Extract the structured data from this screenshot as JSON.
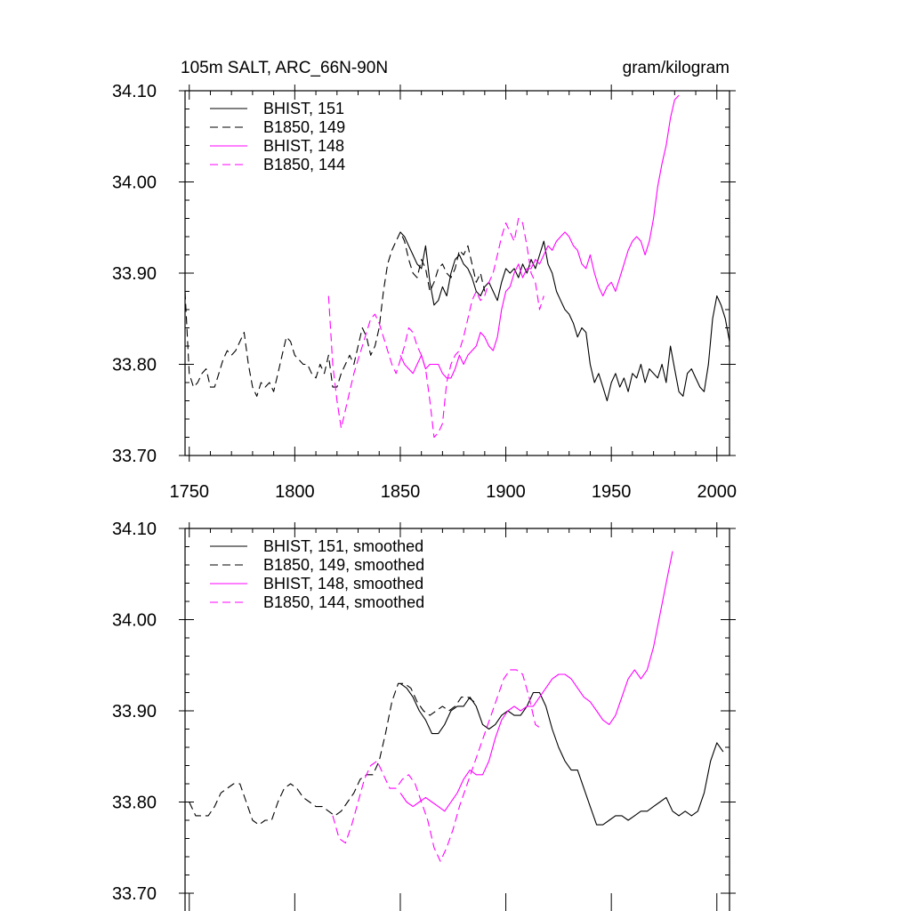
{
  "figure": {
    "title_left": "105m SALT, ARC_66N-90N",
    "title_right": "gram/kilogram"
  },
  "colors": {
    "black": "#000000",
    "magenta": "#ff00ff"
  },
  "chart_data": [
    {
      "type": "line",
      "title": "105m SALT, ARC_66N-90N",
      "units": "gram/kilogram",
      "xlim": [
        1748,
        2006
      ],
      "ylim": [
        33.7,
        34.1
      ],
      "xticks": [
        1750,
        1800,
        1850,
        1900,
        1950,
        2000
      ],
      "yticks": [
        33.7,
        33.8,
        33.9,
        34.0,
        34.1
      ],
      "ytick_labels": [
        "33.70",
        "33.80",
        "33.90",
        "34.00",
        "34.10"
      ],
      "grid": false,
      "legend": "top-left",
      "series": [
        {
          "name": "BHIST, 151",
          "color": "#000000",
          "dash": "solid",
          "x": [
            1850,
            1852,
            1854,
            1856,
            1858,
            1860,
            1862,
            1864,
            1866,
            1868,
            1870,
            1872,
            1874,
            1876,
            1878,
            1880,
            1882,
            1884,
            1886,
            1888,
            1890,
            1892,
            1894,
            1896,
            1898,
            1900,
            1902,
            1904,
            1906,
            1908,
            1910,
            1912,
            1914,
            1916,
            1918,
            1920,
            1922,
            1924,
            1926,
            1928,
            1930,
            1932,
            1934,
            1936,
            1938,
            1940,
            1942,
            1944,
            1946,
            1948,
            1950,
            1952,
            1954,
            1956,
            1958,
            1960,
            1962,
            1964,
            1966,
            1968,
            1970,
            1972,
            1974,
            1976,
            1978,
            1980,
            1982,
            1984,
            1986,
            1988,
            1990,
            1992,
            1994,
            1996,
            1998,
            2000,
            2002,
            2004,
            2006
          ],
          "y": [
            33.945,
            33.94,
            33.93,
            33.92,
            33.91,
            33.905,
            33.93,
            33.89,
            33.865,
            33.87,
            33.885,
            33.875,
            33.9,
            33.915,
            33.92,
            33.91,
            33.905,
            33.895,
            33.88,
            33.875,
            33.885,
            33.89,
            33.88,
            33.87,
            33.89,
            33.905,
            33.9,
            33.905,
            33.895,
            33.91,
            33.9,
            33.915,
            33.905,
            33.92,
            33.935,
            33.91,
            33.9,
            33.88,
            33.87,
            33.86,
            33.855,
            33.845,
            33.83,
            33.84,
            33.835,
            33.8,
            33.78,
            33.79,
            33.775,
            33.76,
            33.78,
            33.79,
            33.775,
            33.785,
            33.77,
            33.79,
            33.785,
            33.8,
            33.78,
            33.795,
            33.79,
            33.785,
            33.8,
            33.78,
            33.82,
            33.795,
            33.77,
            33.765,
            33.79,
            33.795,
            33.785,
            33.775,
            33.77,
            33.8,
            33.85,
            33.875,
            33.865,
            33.85,
            33.825
          ]
        },
        {
          "name": "B1850, 149",
          "color": "#000000",
          "dash": "dashed",
          "x": [
            1748,
            1750,
            1752,
            1754,
            1756,
            1758,
            1760,
            1762,
            1764,
            1766,
            1768,
            1770,
            1772,
            1774,
            1776,
            1778,
            1780,
            1782,
            1784,
            1786,
            1788,
            1790,
            1792,
            1794,
            1796,
            1798,
            1800,
            1802,
            1804,
            1806,
            1808,
            1810,
            1812,
            1814,
            1816,
            1818,
            1820,
            1822,
            1824,
            1826,
            1828,
            1830,
            1832,
            1834,
            1836,
            1838,
            1840,
            1842,
            1844,
            1846,
            1848,
            1850,
            1852,
            1854,
            1856,
            1858,
            1860,
            1862,
            1864,
            1866,
            1868,
            1870,
            1872,
            1874,
            1876,
            1878,
            1880,
            1882,
            1884,
            1886,
            1888,
            1890
          ],
          "y": [
            33.88,
            33.79,
            33.775,
            33.78,
            33.79,
            33.795,
            33.775,
            33.775,
            33.79,
            33.805,
            33.815,
            33.81,
            33.815,
            33.825,
            33.835,
            33.8,
            33.775,
            33.765,
            33.78,
            33.775,
            33.78,
            33.77,
            33.79,
            33.81,
            33.83,
            33.825,
            33.81,
            33.805,
            33.8,
            33.8,
            33.79,
            33.785,
            33.8,
            33.79,
            33.81,
            33.775,
            33.775,
            33.79,
            33.8,
            33.81,
            33.8,
            33.82,
            33.84,
            33.83,
            33.81,
            33.82,
            33.84,
            33.88,
            33.91,
            33.925,
            33.935,
            33.945,
            33.935,
            33.915,
            33.9,
            33.895,
            33.915,
            33.905,
            33.88,
            33.89,
            33.905,
            33.91,
            33.9,
            33.895,
            33.905,
            33.925,
            33.92,
            33.93,
            33.91,
            33.89,
            33.9,
            33.88
          ]
        },
        {
          "name": "BHIST, 148",
          "color": "#ff00ff",
          "dash": "solid",
          "x": [
            1850,
            1852,
            1854,
            1856,
            1858,
            1860,
            1862,
            1864,
            1866,
            1868,
            1870,
            1872,
            1874,
            1876,
            1878,
            1880,
            1882,
            1884,
            1886,
            1888,
            1890,
            1892,
            1894,
            1896,
            1898,
            1900,
            1902,
            1904,
            1906,
            1908,
            1910,
            1912,
            1914,
            1916,
            1918,
            1920,
            1922,
            1924,
            1926,
            1928,
            1930,
            1932,
            1934,
            1936,
            1938,
            1940,
            1942,
            1944,
            1946,
            1948,
            1950,
            1952,
            1954,
            1956,
            1958,
            1960,
            1962,
            1964,
            1966,
            1968,
            1970,
            1972,
            1974,
            1976,
            1978,
            1980,
            1982
          ],
          "y": [
            33.81,
            33.8,
            33.795,
            33.79,
            33.8,
            33.81,
            33.795,
            33.8,
            33.8,
            33.8,
            33.79,
            33.785,
            33.785,
            33.795,
            33.81,
            33.8,
            33.81,
            33.815,
            33.82,
            33.835,
            33.83,
            33.82,
            33.815,
            33.83,
            33.86,
            33.88,
            33.885,
            33.9,
            33.91,
            33.895,
            33.905,
            33.905,
            33.915,
            33.91,
            33.92,
            33.93,
            33.925,
            33.935,
            33.94,
            33.945,
            33.94,
            33.93,
            33.925,
            33.91,
            33.905,
            33.92,
            33.9,
            33.885,
            33.875,
            33.885,
            33.89,
            33.88,
            33.895,
            33.91,
            33.925,
            33.935,
            33.94,
            33.935,
            33.92,
            33.935,
            33.96,
            33.995,
            34.02,
            34.04,
            34.07,
            34.09,
            34.095
          ]
        },
        {
          "name": "B1850, 144",
          "color": "#ff00ff",
          "dash": "dashed",
          "x": [
            1816,
            1818,
            1820,
            1822,
            1824,
            1826,
            1828,
            1830,
            1832,
            1834,
            1836,
            1838,
            1840,
            1842,
            1844,
            1846,
            1848,
            1850,
            1852,
            1854,
            1856,
            1858,
            1860,
            1862,
            1864,
            1866,
            1868,
            1870,
            1872,
            1874,
            1876,
            1878,
            1880,
            1882,
            1884,
            1886,
            1888,
            1890,
            1892,
            1894,
            1896,
            1898,
            1900,
            1902,
            1904,
            1906,
            1908,
            1910,
            1912,
            1914,
            1916,
            1918
          ],
          "y": [
            33.875,
            33.8,
            33.76,
            33.73,
            33.75,
            33.77,
            33.79,
            33.805,
            33.82,
            33.835,
            33.85,
            33.855,
            33.845,
            33.83,
            33.815,
            33.8,
            33.79,
            33.805,
            33.82,
            33.84,
            33.835,
            33.82,
            33.81,
            33.795,
            33.76,
            33.72,
            33.725,
            33.735,
            33.78,
            33.8,
            33.81,
            33.815,
            33.83,
            33.85,
            33.87,
            33.88,
            33.87,
            33.875,
            33.89,
            33.9,
            33.92,
            33.94,
            33.955,
            33.945,
            33.935,
            33.96,
            33.955,
            33.93,
            33.9,
            33.89,
            33.86,
            33.875
          ]
        }
      ]
    },
    {
      "type": "line",
      "title": "",
      "xlim": [
        1748,
        2006
      ],
      "ylim": [
        33.7,
        34.1
      ],
      "xticks": [
        1750,
        1800,
        1850,
        1900,
        1950,
        2000
      ],
      "yticks": [
        33.7,
        33.8,
        33.9,
        34.0,
        34.1
      ],
      "ytick_labels": [
        "33.70",
        "33.80",
        "33.90",
        "34.00",
        "34.10"
      ],
      "grid": false,
      "legend": "top-left",
      "series": [
        {
          "name": "BHIST, 151, smoothed",
          "color": "#000000",
          "dash": "solid",
          "x": [
            1850,
            1853,
            1856,
            1859,
            1862,
            1865,
            1868,
            1871,
            1874,
            1877,
            1880,
            1883,
            1886,
            1889,
            1892,
            1895,
            1898,
            1901,
            1904,
            1907,
            1910,
            1913,
            1916,
            1919,
            1922,
            1925,
            1928,
            1931,
            1934,
            1937,
            1940,
            1943,
            1946,
            1949,
            1952,
            1955,
            1958,
            1961,
            1964,
            1967,
            1970,
            1973,
            1976,
            1979,
            1982,
            1985,
            1988,
            1991,
            1994,
            1997,
            2000,
            2003
          ],
          "y": [
            33.93,
            33.925,
            33.915,
            33.9,
            33.89,
            33.875,
            33.875,
            33.885,
            33.9,
            33.905,
            33.905,
            33.915,
            33.905,
            33.885,
            33.88,
            33.885,
            33.895,
            33.9,
            33.895,
            33.895,
            33.905,
            33.92,
            33.92,
            33.905,
            33.88,
            33.86,
            33.845,
            33.835,
            33.835,
            33.815,
            33.795,
            33.775,
            33.775,
            33.78,
            33.785,
            33.785,
            33.78,
            33.785,
            33.79,
            33.79,
            33.795,
            33.8,
            33.805,
            33.79,
            33.785,
            33.79,
            33.785,
            33.79,
            33.81,
            33.845,
            33.865,
            33.855
          ]
        },
        {
          "name": "B1850, 149, smoothed",
          "color": "#000000",
          "dash": "dashed",
          "x": [
            1750,
            1753,
            1756,
            1759,
            1762,
            1765,
            1768,
            1771,
            1774,
            1777,
            1780,
            1783,
            1786,
            1789,
            1792,
            1795,
            1798,
            1801,
            1804,
            1807,
            1810,
            1813,
            1816,
            1819,
            1822,
            1825,
            1828,
            1831,
            1834,
            1837,
            1840,
            1843,
            1846,
            1849,
            1852,
            1855,
            1858,
            1861,
            1864,
            1867,
            1870,
            1873,
            1876,
            1879,
            1882,
            1885
          ],
          "y": [
            33.8,
            33.785,
            33.785,
            33.785,
            33.795,
            33.81,
            33.815,
            33.82,
            33.82,
            33.8,
            33.78,
            33.775,
            33.78,
            33.78,
            33.8,
            33.815,
            33.82,
            33.815,
            33.805,
            33.8,
            33.795,
            33.795,
            33.79,
            33.785,
            33.79,
            33.8,
            33.81,
            33.825,
            33.83,
            33.83,
            33.845,
            33.875,
            33.91,
            33.93,
            33.93,
            33.925,
            33.91,
            33.9,
            33.895,
            33.9,
            33.905,
            33.9,
            33.905,
            33.915,
            33.915,
            33.91
          ]
        },
        {
          "name": "BHIST, 148, smoothed",
          "color": "#ff00ff",
          "dash": "solid",
          "x": [
            1850,
            1853,
            1856,
            1859,
            1862,
            1865,
            1868,
            1871,
            1874,
            1877,
            1880,
            1883,
            1886,
            1889,
            1892,
            1895,
            1898,
            1901,
            1904,
            1907,
            1910,
            1913,
            1916,
            1919,
            1922,
            1925,
            1928,
            1931,
            1934,
            1937,
            1940,
            1943,
            1946,
            1949,
            1952,
            1955,
            1958,
            1961,
            1964,
            1967,
            1970,
            1973,
            1976,
            1979
          ],
          "y": [
            33.81,
            33.8,
            33.795,
            33.8,
            33.805,
            33.8,
            33.795,
            33.79,
            33.8,
            33.81,
            33.825,
            33.835,
            33.83,
            33.83,
            33.845,
            33.87,
            33.89,
            33.9,
            33.905,
            33.9,
            33.905,
            33.905,
            33.915,
            33.925,
            33.935,
            33.94,
            33.94,
            33.935,
            33.925,
            33.915,
            33.91,
            33.9,
            33.89,
            33.885,
            33.895,
            33.915,
            33.935,
            33.945,
            33.935,
            33.945,
            33.97,
            34.005,
            34.04,
            34.075
          ]
        },
        {
          "name": "B1850, 144, smoothed",
          "color": "#ff00ff",
          "dash": "dashed",
          "x": [
            1818,
            1821,
            1824,
            1827,
            1830,
            1833,
            1836,
            1839,
            1842,
            1845,
            1848,
            1851,
            1854,
            1857,
            1860,
            1863,
            1866,
            1869,
            1872,
            1875,
            1878,
            1881,
            1884,
            1887,
            1890,
            1893,
            1896,
            1899,
            1902,
            1905,
            1908,
            1911,
            1914,
            1917
          ],
          "y": [
            33.785,
            33.76,
            33.755,
            33.775,
            33.8,
            33.825,
            33.84,
            33.845,
            33.83,
            33.815,
            33.815,
            33.825,
            33.83,
            33.82,
            33.8,
            33.78,
            33.75,
            33.735,
            33.75,
            33.77,
            33.795,
            33.815,
            33.835,
            33.855,
            33.875,
            33.895,
            33.915,
            33.935,
            33.945,
            33.945,
            33.94,
            33.915,
            33.885,
            33.88
          ]
        }
      ]
    }
  ]
}
